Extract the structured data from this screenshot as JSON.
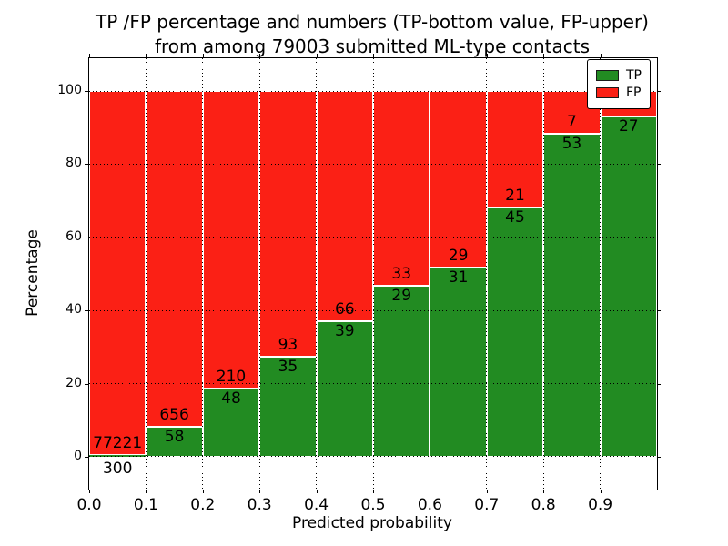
{
  "chart_data": {
    "type": "bar",
    "subtype": "stacked-100-percent",
    "title_line1": "TP /FP percentage and numbers (TP-bottom value, FP-upper)",
    "title_line2": "from among 79003 submitted ML-type contacts",
    "xlabel": "Predicted probability",
    "ylabel": "Percentage",
    "x_tick_labels": [
      "0.0",
      "0.1",
      "0.2",
      "0.3",
      "0.4",
      "0.5",
      "0.6",
      "0.7",
      "0.8",
      "0.9"
    ],
    "y_ticks": [
      0,
      20,
      40,
      60,
      80,
      100
    ],
    "y_tick_labels": [
      "0",
      "20",
      "40",
      "60",
      "80",
      "100"
    ],
    "xlim": [
      0.0,
      1.0
    ],
    "ylim": [
      -9,
      109
    ],
    "bar_width": 0.1,
    "grid": {
      "visible": true,
      "style": "dotted"
    },
    "legend_position": "upper-right",
    "series": [
      {
        "name": "TP",
        "color": "#228b22",
        "counts": [
          300,
          58,
          48,
          35,
          39,
          29,
          31,
          45,
          53,
          27
        ]
      },
      {
        "name": "FP",
        "color": "#fb2015",
        "counts": [
          77221,
          656,
          210,
          93,
          66,
          33,
          29,
          21,
          7,
          2
        ]
      }
    ],
    "percent_tp_per_bin": [
      0.39,
      8.12,
      18.6,
      27.34,
      37.14,
      46.77,
      51.67,
      68.18,
      88.33,
      93.1
    ],
    "total_contacts_shown_in_title": 79003
  }
}
